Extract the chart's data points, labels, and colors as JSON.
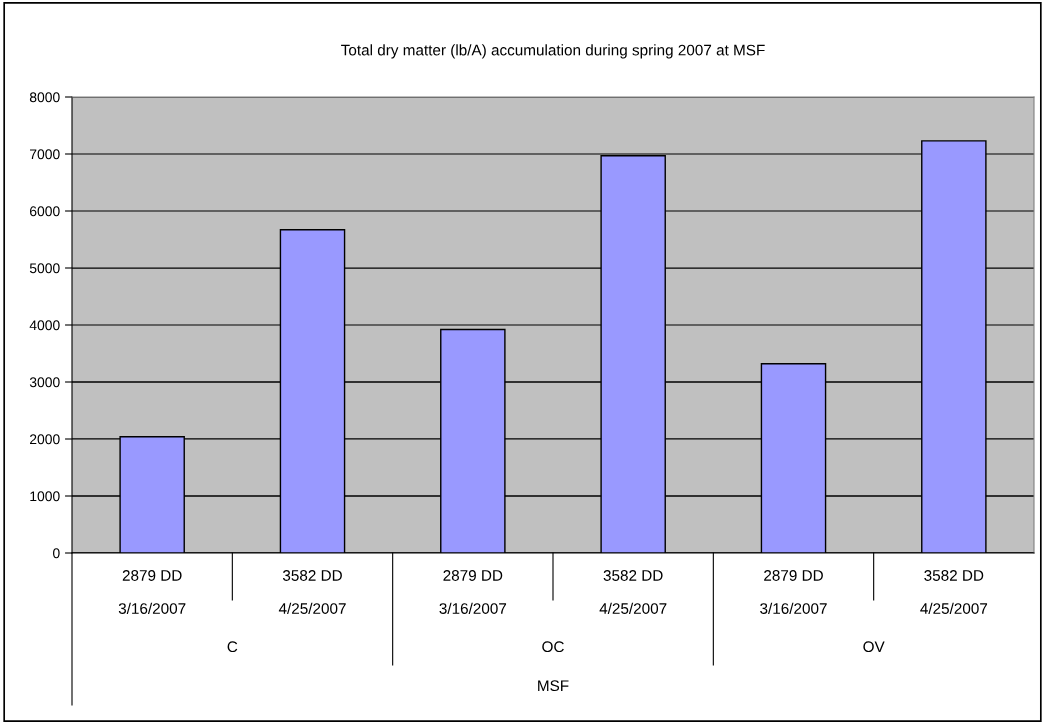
{
  "chart_data": {
    "type": "bar",
    "title": "Total dry matter (lb/A) accumulation during spring 2007 at MSF",
    "categories": [
      "2879 DD\n3/16/2007",
      "3582 DD\n4/25/2007",
      "2879 DD\n3/16/2007",
      "3582 DD\n4/25/2007",
      "2879 DD\n3/16/2007",
      "3582 DD\n4/25/2007"
    ],
    "values": [
      2040,
      5670,
      3920,
      6970,
      3320,
      7230
    ],
    "color": "#9999ff",
    "annotations": [
      "C",
      "OC",
      "OV",
      "MSF"
    ],
    "ylim": [
      0,
      8000
    ],
    "yticks": [
      0,
      1000,
      2000,
      3000,
      4000,
      5000,
      6000,
      7000,
      8000
    ],
    "grid": "y",
    "legend": false
  }
}
